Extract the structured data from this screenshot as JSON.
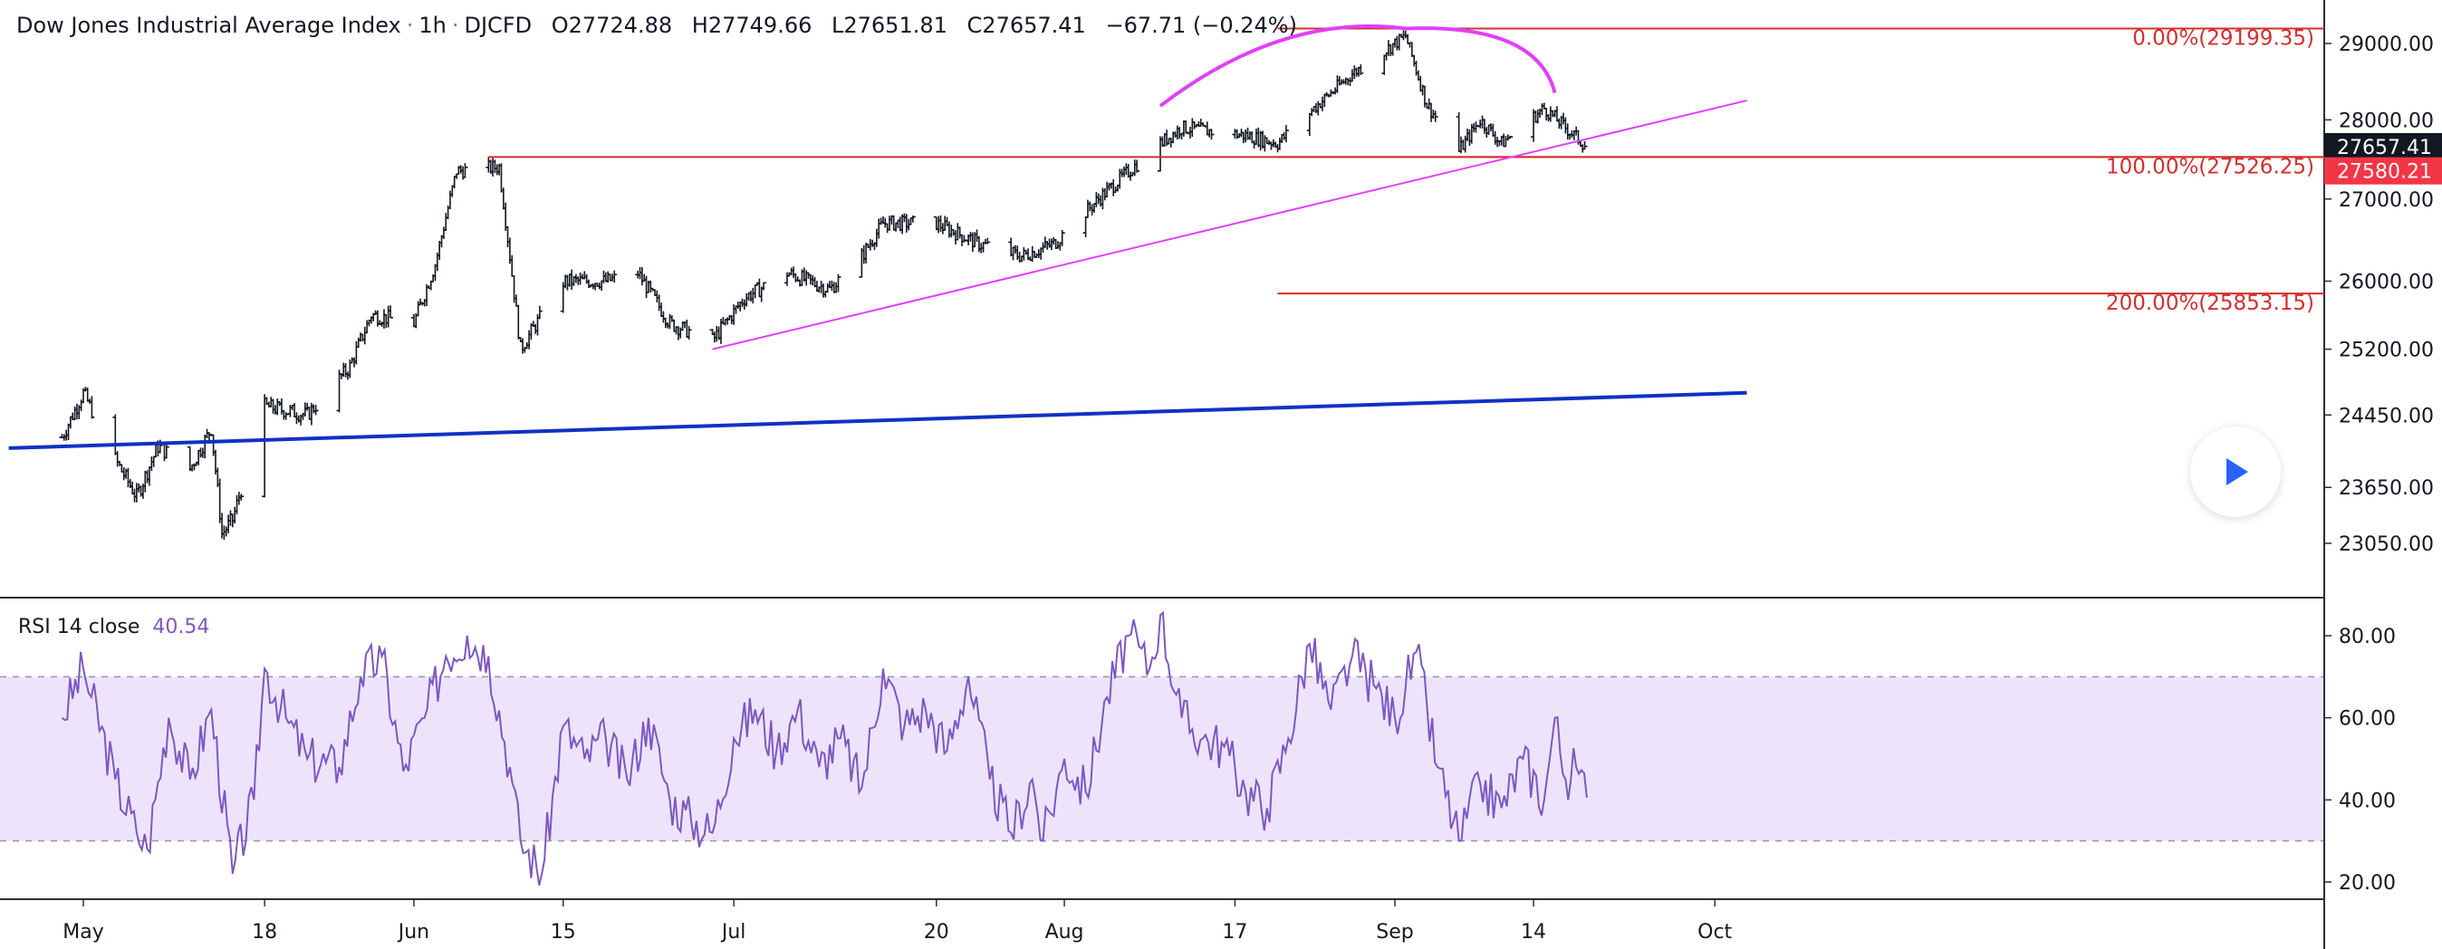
{
  "header": {
    "symbol_name": "Dow Jones Industrial Average Index",
    "interval": "1h",
    "ticker": "DJCFD",
    "open_label": "O",
    "open": "27724.88",
    "high_label": "H",
    "high": "27749.66",
    "low_label": "L",
    "low": "27651.81",
    "close_label": "C",
    "close": "27657.41",
    "change": "−67.71 (−0.24%)"
  },
  "rsi_legend": {
    "name": "RSI 14 close",
    "value": "40.54"
  },
  "colors": {
    "candle": "#131722",
    "trend_blue": "#1131c4",
    "trend_magenta": "#e040fb",
    "fib_red": "#d32f2f",
    "rsi_line": "#7e57c2",
    "rsi_band": "#ede4fb",
    "price_tag_black": "#131722",
    "price_tag_red": "#f23645"
  },
  "chart_data": [
    {
      "type": "candlestick",
      "title": "Dow Jones Industrial Average Index · 1h · DJCFD",
      "x_tick_labels": [
        "May",
        "18",
        "Jun",
        "15",
        "Jul",
        "20",
        "Aug",
        "17",
        "Sep",
        "14",
        "Oct"
      ],
      "x_tick_dates": [
        "2020-05-01",
        "2020-05-18",
        "2020-06-01",
        "2020-06-15",
        "2020-07-01",
        "2020-07-20",
        "2020-08-01",
        "2020-08-17",
        "2020-09-01",
        "2020-09-14",
        "2020-10-01"
      ],
      "y_tick_labels": [
        "29000.00",
        "28000.00",
        "27000.00",
        "26000.00",
        "25200.00",
        "24450.00",
        "23650.00",
        "23050.00"
      ],
      "y_range": [
        22700,
        29400
      ],
      "y_scale": "log",
      "price_path": [
        [
          "2020-04-29",
          24200
        ],
        [
          "2020-05-01",
          24700
        ],
        [
          "2020-05-04",
          23950
        ],
        [
          "2020-05-06",
          23550
        ],
        [
          "2020-05-08",
          24100
        ],
        [
          "2020-05-11",
          23850
        ],
        [
          "2020-05-13",
          24300
        ],
        [
          "2020-05-14",
          23150
        ],
        [
          "2020-05-15",
          23300
        ],
        [
          "2020-05-18",
          24550
        ],
        [
          "2020-05-22",
          24450
        ],
        [
          "2020-05-26",
          25000
        ],
        [
          "2020-05-28",
          25600
        ],
        [
          "2020-06-01",
          25500
        ],
        [
          "2020-06-03",
          26200
        ],
        [
          "2020-06-05",
          27350
        ],
        [
          "2020-06-09",
          27400
        ],
        [
          "2020-06-11",
          25200
        ],
        [
          "2020-06-12",
          25400
        ],
        [
          "2020-06-15",
          26000
        ],
        [
          "2020-06-19",
          26000
        ],
        [
          "2020-06-22",
          26100
        ],
        [
          "2020-06-25",
          25500
        ],
        [
          "2020-06-29",
          25300
        ],
        [
          "2020-07-02",
          25800
        ],
        [
          "2020-07-06",
          26100
        ],
        [
          "2020-07-10",
          25900
        ],
        [
          "2020-07-13",
          26300
        ],
        [
          "2020-07-15",
          26700
        ],
        [
          "2020-07-20",
          26700
        ],
        [
          "2020-07-24",
          26450
        ],
        [
          "2020-07-28",
          26300
        ],
        [
          "2020-07-31",
          26450
        ],
        [
          "2020-08-05",
          27100
        ],
        [
          "2020-08-10",
          27700
        ],
        [
          "2020-08-12",
          27900
        ],
        [
          "2020-08-18",
          27800
        ],
        [
          "2020-08-21",
          27700
        ],
        [
          "2020-08-24",
          28100
        ],
        [
          "2020-08-28",
          28600
        ],
        [
          "2020-09-02",
          29100
        ],
        [
          "2020-09-04",
          28200
        ],
        [
          "2020-09-07",
          27600
        ],
        [
          "2020-09-09",
          28000
        ],
        [
          "2020-09-11",
          27700
        ],
        [
          "2020-09-15",
          28150
        ],
        [
          "2020-09-17",
          27900
        ],
        [
          "2020-09-19",
          27657
        ]
      ],
      "trendlines": [
        {
          "name": "long-term",
          "color": "#1131c4",
          "from": [
            "2020-04-24",
            24080
          ],
          "to": [
            "2020-10-04",
            24700
          ]
        },
        {
          "name": "rising",
          "color": "#e040fb",
          "from": [
            "2020-06-29",
            25200
          ],
          "to": [
            "2020-10-04",
            28250
          ]
        }
      ],
      "arc": {
        "color": "#e040fb",
        "from": [
          "2020-08-10",
          28180
        ],
        "peak": [
          "2020-09-02",
          29199.35
        ],
        "to": [
          "2020-09-16",
          28350
        ]
      },
      "horizontal_level": {
        "from_date": "2020-06-08",
        "value": 27526.25
      },
      "fib_levels": [
        {
          "label": "0.00%(29199.35)",
          "value": 29199.35
        },
        {
          "label": "100.00%(27526.25)",
          "value": 27526.25
        },
        {
          "label": "200.00%(25853.15)",
          "value": 25853.15
        }
      ],
      "fib_from_date": "2020-08-21",
      "price_tags": [
        {
          "label": "27657.41",
          "value": 27657.41,
          "style": "last"
        },
        {
          "label": "27580.21",
          "value": 27580.21,
          "style": "alert"
        }
      ]
    },
    {
      "type": "line",
      "title": "RSI 14 close",
      "y_tick_labels": [
        "80.00",
        "60.00",
        "40.00",
        "20.00"
      ],
      "y_range": [
        15,
        88
      ],
      "band": [
        30,
        70
      ],
      "series": [
        {
          "name": "RSI 14 close",
          "points": [
            [
              "2020-04-29",
              60
            ],
            [
              "2020-05-01",
              72
            ],
            [
              "2020-05-04",
              45
            ],
            [
              "2020-05-06",
              32
            ],
            [
              "2020-05-07",
              28
            ],
            [
              "2020-05-09",
              60
            ],
            [
              "2020-05-11",
              45
            ],
            [
              "2020-05-13",
              62
            ],
            [
              "2020-05-15",
              22
            ],
            [
              "2020-05-17",
              40
            ],
            [
              "2020-05-18",
              72
            ],
            [
              "2020-05-20",
              60
            ],
            [
              "2020-05-22",
              50
            ],
            [
              "2020-05-25",
              48
            ],
            [
              "2020-05-27",
              70
            ],
            [
              "2020-05-29",
              75
            ],
            [
              "2020-05-31",
              47
            ],
            [
              "2020-06-02",
              60
            ],
            [
              "2020-06-04",
              75
            ],
            [
              "2020-06-06",
              80
            ],
            [
              "2020-06-08",
              75
            ],
            [
              "2020-06-10",
              48
            ],
            [
              "2020-06-11",
              30
            ],
            [
              "2020-06-13",
              22
            ],
            [
              "2020-06-15",
              58
            ],
            [
              "2020-06-17",
              50
            ],
            [
              "2020-06-19",
              55
            ],
            [
              "2020-06-21",
              45
            ],
            [
              "2020-06-23",
              60
            ],
            [
              "2020-06-25",
              40
            ],
            [
              "2020-06-27",
              35
            ],
            [
              "2020-06-29",
              32
            ],
            [
              "2020-07-01",
              55
            ],
            [
              "2020-07-03",
              62
            ],
            [
              "2020-07-05",
              52
            ],
            [
              "2020-07-07",
              62
            ],
            [
              "2020-07-09",
              48
            ],
            [
              "2020-07-11",
              55
            ],
            [
              "2020-07-13",
              43
            ],
            [
              "2020-07-15",
              72
            ],
            [
              "2020-07-17",
              58
            ],
            [
              "2020-07-19",
              62
            ],
            [
              "2020-07-21",
              52
            ],
            [
              "2020-07-23",
              70
            ],
            [
              "2020-07-25",
              45
            ],
            [
              "2020-07-27",
              32
            ],
            [
              "2020-07-29",
              45
            ],
            [
              "2020-07-30",
              30
            ],
            [
              "2020-08-01",
              50
            ],
            [
              "2020-08-03",
              42
            ],
            [
              "2020-08-05",
              65
            ],
            [
              "2020-08-07",
              80
            ],
            [
              "2020-08-09",
              72
            ],
            [
              "2020-08-10",
              85
            ],
            [
              "2020-08-12",
              60
            ],
            [
              "2020-08-14",
              55
            ],
            [
              "2020-08-16",
              53
            ],
            [
              "2020-08-18",
              42
            ],
            [
              "2020-08-20",
              38
            ],
            [
              "2020-08-22",
              55
            ],
            [
              "2020-08-24",
              78
            ],
            [
              "2020-08-26",
              62
            ],
            [
              "2020-08-28",
              75
            ],
            [
              "2020-08-30",
              68
            ],
            [
              "2020-09-01",
              60
            ],
            [
              "2020-09-03",
              76
            ],
            [
              "2020-09-05",
              48
            ],
            [
              "2020-09-07",
              30
            ],
            [
              "2020-09-09",
              44
            ],
            [
              "2020-09-11",
              38
            ],
            [
              "2020-09-13",
              50
            ],
            [
              "2020-09-15",
              40
            ],
            [
              "2020-09-16",
              60
            ],
            [
              "2020-09-17",
              45
            ],
            [
              "2020-09-18",
              48
            ],
            [
              "2020-09-19",
              40.54
            ]
          ]
        }
      ]
    }
  ]
}
